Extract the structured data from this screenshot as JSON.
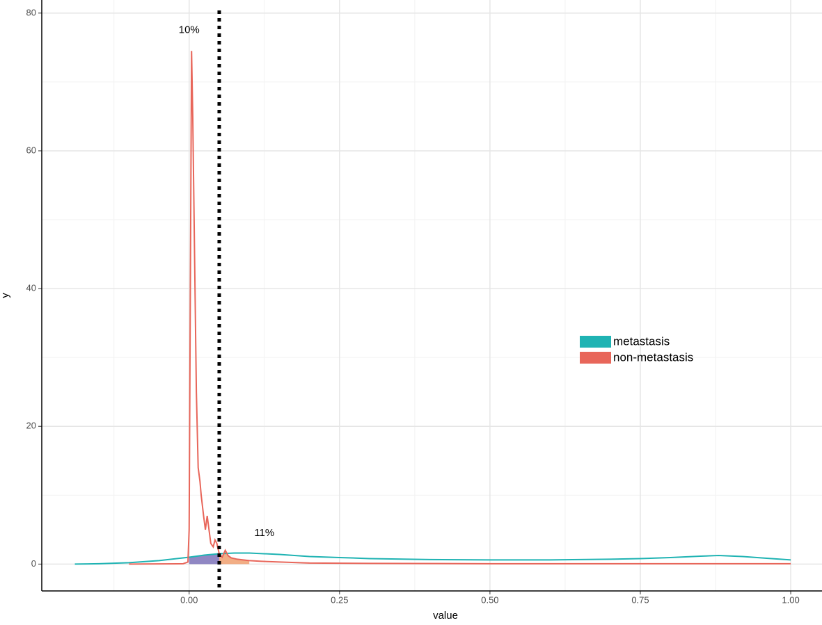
{
  "chart_data": {
    "type": "density",
    "x_label": "value",
    "y_label": "y",
    "xlim": [
      -0.245,
      1.052
    ],
    "ylim": [
      -3.9,
      81.9
    ],
    "xticks": [
      {
        "value": 0,
        "label": "0.00"
      },
      {
        "value": 0.25,
        "label": "0.25"
      },
      {
        "value": 0.5,
        "label": "0.50"
      },
      {
        "value": 0.75,
        "label": "0.75"
      },
      {
        "value": 1,
        "label": "1.00"
      }
    ],
    "yticks": [
      0,
      20,
      40,
      60,
      80
    ],
    "grid": true,
    "legend": "right",
    "cutoff": 0.05,
    "series": [
      {
        "name": "metastasis",
        "color": "#1fb3b3",
        "x": [
          -0.19,
          -0.15,
          -0.1,
          -0.05,
          0,
          0.025,
          0.05,
          0.075,
          0.1,
          0.15,
          0.2,
          0.25,
          0.3,
          0.4,
          0.5,
          0.6,
          0.7,
          0.75,
          0.8,
          0.85,
          0.88,
          0.92,
          0.96,
          1.0
        ],
        "values": [
          0,
          0.05,
          0.2,
          0.5,
          1.0,
          1.3,
          1.5,
          1.6,
          1.6,
          1.4,
          1.1,
          0.95,
          0.8,
          0.65,
          0.6,
          0.6,
          0.7,
          0.8,
          0.95,
          1.15,
          1.25,
          1.1,
          0.85,
          0.6
        ]
      },
      {
        "name": "non-metastasis",
        "color": "#e8665a",
        "x": [
          -0.1,
          -0.05,
          -0.01,
          -0.002,
          0,
          0.002,
          0.004,
          0.006,
          0.009,
          0.012,
          0.015,
          0.018,
          0.02,
          0.024,
          0.027,
          0.03,
          0.033,
          0.036,
          0.04,
          0.043,
          0.046,
          0.05,
          0.055,
          0.06,
          0.065,
          0.07,
          0.08,
          0.1,
          0.12,
          0.15,
          0.2,
          0.3,
          0.5,
          0.75,
          1.0
        ],
        "values": [
          0,
          0.02,
          0.05,
          0.3,
          5,
          40,
          74.5,
          65,
          45,
          25,
          14,
          12,
          10,
          7,
          5,
          7,
          5,
          3,
          2.5,
          3.5,
          3,
          1.5,
          1,
          2,
          1.2,
          0.9,
          0.7,
          0.5,
          0.4,
          0.3,
          0.15,
          0.1,
          0.05,
          0.05,
          0.05
        ]
      }
    ],
    "shaded_regions": [
      {
        "series": 0,
        "from": 0,
        "to": 0.05,
        "color": "#7d72b8"
      },
      {
        "series": 1,
        "from": 0.05,
        "to": 0.1,
        "color": "#f0a070"
      }
    ],
    "annotations": [
      {
        "text": "10%",
        "x": 0.0,
        "y": 77.5
      },
      {
        "text": "11%",
        "x": 0.125,
        "y": 4.5
      }
    ]
  }
}
